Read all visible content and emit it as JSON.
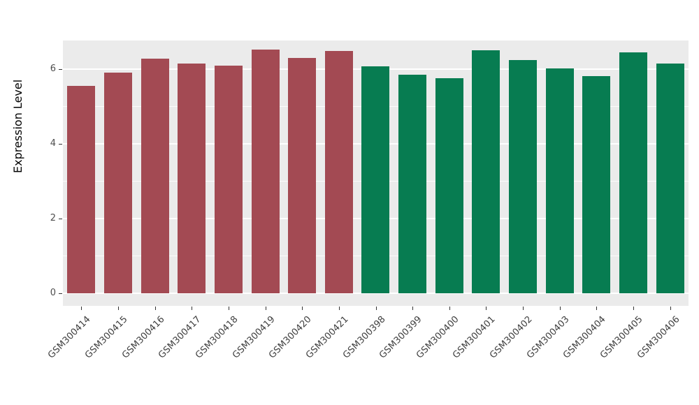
{
  "chart_data": {
    "type": "bar",
    "title": "",
    "xlabel": "",
    "ylabel": "Expression Level",
    "ylim": [
      0,
      6.9
    ],
    "yticks": [
      0,
      2,
      4,
      6
    ],
    "yticks_minor": [
      1,
      3,
      5
    ],
    "legend": "none",
    "panel_background": "#EBEBEB",
    "grid_color": "#ffffff",
    "group_colors": {
      "groupA": "#A34A53",
      "groupB": "#077C51"
    },
    "categories": [
      "GSM300414",
      "GSM300415",
      "GSM300416",
      "GSM300417",
      "GSM300418",
      "GSM300419",
      "GSM300420",
      "GSM300421",
      "GSM300398",
      "GSM300399",
      "GSM300400",
      "GSM300401",
      "GSM300402",
      "GSM300403",
      "GSM300404",
      "GSM300405",
      "GSM300406"
    ],
    "values": [
      5.55,
      5.9,
      6.28,
      6.15,
      6.1,
      6.53,
      6.3,
      6.48,
      6.08,
      5.85,
      5.75,
      6.5,
      6.25,
      6.02,
      5.82,
      6.45,
      6.15
    ],
    "groups": [
      "groupA",
      "groupA",
      "groupA",
      "groupA",
      "groupA",
      "groupA",
      "groupA",
      "groupA",
      "groupB",
      "groupB",
      "groupB",
      "groupB",
      "groupB",
      "groupB",
      "groupB",
      "groupB",
      "groupB"
    ]
  }
}
